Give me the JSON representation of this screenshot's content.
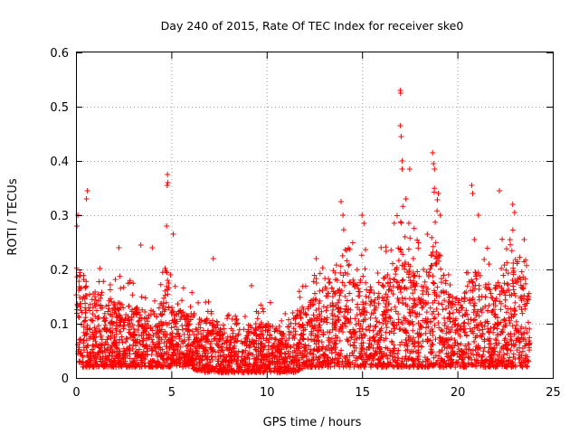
{
  "chart_data": {
    "type": "scatter",
    "title": "Day 240 of 2015, Rate Of TEC Index for receiver ske0",
    "xlabel": "GPS time / hours",
    "ylabel": "ROTI / TECUs",
    "xlim": [
      0,
      25
    ],
    "ylim": [
      0,
      0.6
    ],
    "xticks": [
      "0",
      "5",
      "10",
      "15",
      "20",
      "25"
    ],
    "yticks": [
      "0",
      "0.1",
      "0.2",
      "0.3",
      "0.4",
      "0.5",
      "0.6"
    ],
    "grid": true,
    "marker": "+",
    "color": "#ff0000",
    "series": [
      {
        "name": "ROTI",
        "envelope": {
          "hours": [
            0,
            0.1,
            0.3,
            0.6,
            1,
            1.5,
            2,
            2.5,
            3,
            3.5,
            4,
            4.5,
            4.8,
            5,
            5.5,
            6,
            6.5,
            7,
            7.5,
            8,
            8.5,
            9,
            9.5,
            10,
            10.5,
            11,
            11.5,
            12,
            12.5,
            13,
            13.5,
            14,
            14.5,
            15,
            15.5,
            16,
            16.5,
            17,
            17.3,
            17.7,
            18,
            18.5,
            18.8,
            19,
            19.5,
            20,
            20.5,
            21,
            21.5,
            22,
            22.5,
            23,
            23.5,
            23.8
          ],
          "typical_max": [
            0.22,
            0.25,
            0.2,
            0.18,
            0.16,
            0.15,
            0.14,
            0.14,
            0.13,
            0.13,
            0.13,
            0.14,
            0.18,
            0.15,
            0.13,
            0.12,
            0.11,
            0.11,
            0.1,
            0.09,
            0.09,
            0.1,
            0.1,
            0.11,
            0.1,
            0.09,
            0.12,
            0.14,
            0.15,
            0.17,
            0.2,
            0.23,
            0.2,
            0.2,
            0.17,
            0.18,
            0.2,
            0.3,
            0.26,
            0.22,
            0.2,
            0.2,
            0.28,
            0.25,
            0.16,
            0.15,
            0.17,
            0.2,
            0.18,
            0.17,
            0.2,
            0.22,
            0.2,
            0.15
          ],
          "typical_min": [
            0.05,
            0.03,
            0.02,
            0.02,
            0.02,
            0.02,
            0.02,
            0.02,
            0.02,
            0.02,
            0.02,
            0.02,
            0.02,
            0.02,
            0.02,
            0.02,
            0.01,
            0.01,
            0.01,
            0.01,
            0.01,
            0.01,
            0.01,
            0.01,
            0.01,
            0.01,
            0.01,
            0.02,
            0.02,
            0.02,
            0.02,
            0.02,
            0.02,
            0.02,
            0.02,
            0.02,
            0.02,
            0.02,
            0.02,
            0.02,
            0.02,
            0.02,
            0.02,
            0.02,
            0.02,
            0.02,
            0.02,
            0.02,
            0.02,
            0.02,
            0.02,
            0.02,
            0.02,
            0.02
          ]
        },
        "peaks": [
          {
            "x": 0.1,
            "y": 0.3
          },
          {
            "x": 0.05,
            "y": 0.28
          },
          {
            "x": 0.6,
            "y": 0.345
          },
          {
            "x": 0.55,
            "y": 0.33
          },
          {
            "x": 2.25,
            "y": 0.24
          },
          {
            "x": 3.4,
            "y": 0.245
          },
          {
            "x": 4.0,
            "y": 0.24
          },
          {
            "x": 4.8,
            "y": 0.375
          },
          {
            "x": 4.82,
            "y": 0.36
          },
          {
            "x": 4.78,
            "y": 0.355
          },
          {
            "x": 4.75,
            "y": 0.28
          },
          {
            "x": 5.1,
            "y": 0.265
          },
          {
            "x": 7.2,
            "y": 0.22
          },
          {
            "x": 9.2,
            "y": 0.17
          },
          {
            "x": 12.6,
            "y": 0.22
          },
          {
            "x": 13.9,
            "y": 0.325
          },
          {
            "x": 14.0,
            "y": 0.3
          },
          {
            "x": 15.0,
            "y": 0.3
          },
          {
            "x": 15.1,
            "y": 0.285
          },
          {
            "x": 17.0,
            "y": 0.53
          },
          {
            "x": 17.02,
            "y": 0.525
          },
          {
            "x": 17.0,
            "y": 0.465
          },
          {
            "x": 17.05,
            "y": 0.445
          },
          {
            "x": 17.1,
            "y": 0.4
          },
          {
            "x": 17.1,
            "y": 0.385
          },
          {
            "x": 17.3,
            "y": 0.33
          },
          {
            "x": 17.5,
            "y": 0.385
          },
          {
            "x": 18.7,
            "y": 0.415
          },
          {
            "x": 18.75,
            "y": 0.395
          },
          {
            "x": 18.8,
            "y": 0.385
          },
          {
            "x": 19.0,
            "y": 0.34
          },
          {
            "x": 19.1,
            "y": 0.3
          },
          {
            "x": 20.75,
            "y": 0.355
          },
          {
            "x": 20.8,
            "y": 0.34
          },
          {
            "x": 21.1,
            "y": 0.3
          },
          {
            "x": 22.2,
            "y": 0.345
          },
          {
            "x": 22.9,
            "y": 0.32
          },
          {
            "x": 23.0,
            "y": 0.305
          },
          {
            "x": 23.5,
            "y": 0.255
          }
        ]
      }
    ]
  }
}
